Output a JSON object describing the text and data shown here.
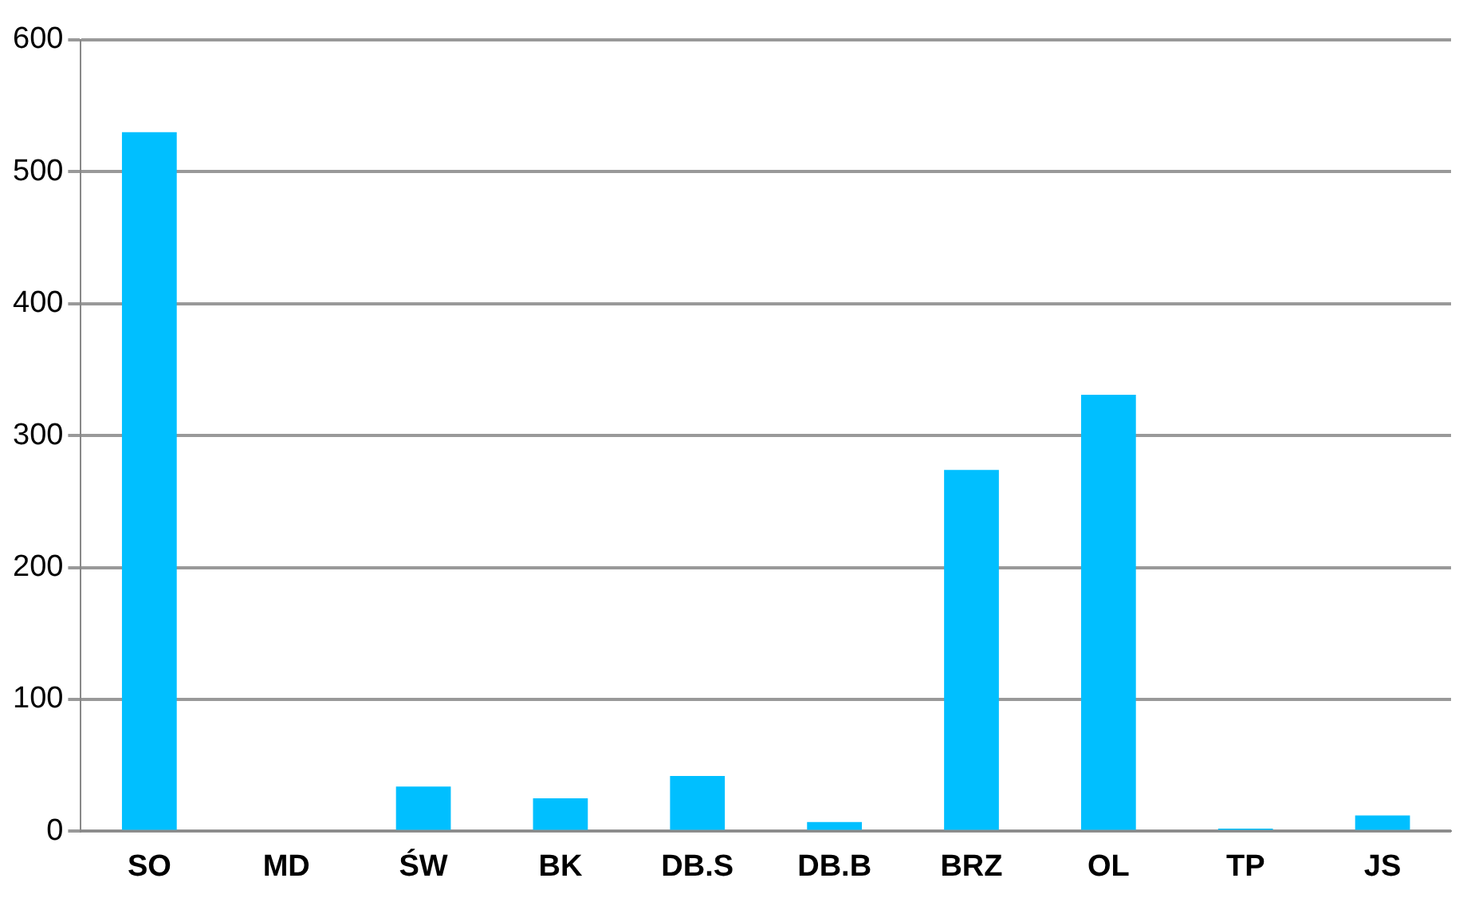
{
  "chart_data": {
    "type": "bar",
    "categories": [
      "SO",
      "MD",
      "ŚW",
      "BK",
      "DB.S",
      "DB.B",
      "BRZ",
      "OL",
      "TP",
      "JS"
    ],
    "values": [
      530,
      0,
      34,
      25,
      42,
      7,
      274,
      331,
      2,
      12
    ],
    "color": "#00bfff",
    "ylim": [
      0,
      600
    ],
    "yticks": [
      0,
      100,
      200,
      300,
      400,
      500,
      600
    ],
    "grid": "y",
    "legend": false
  }
}
